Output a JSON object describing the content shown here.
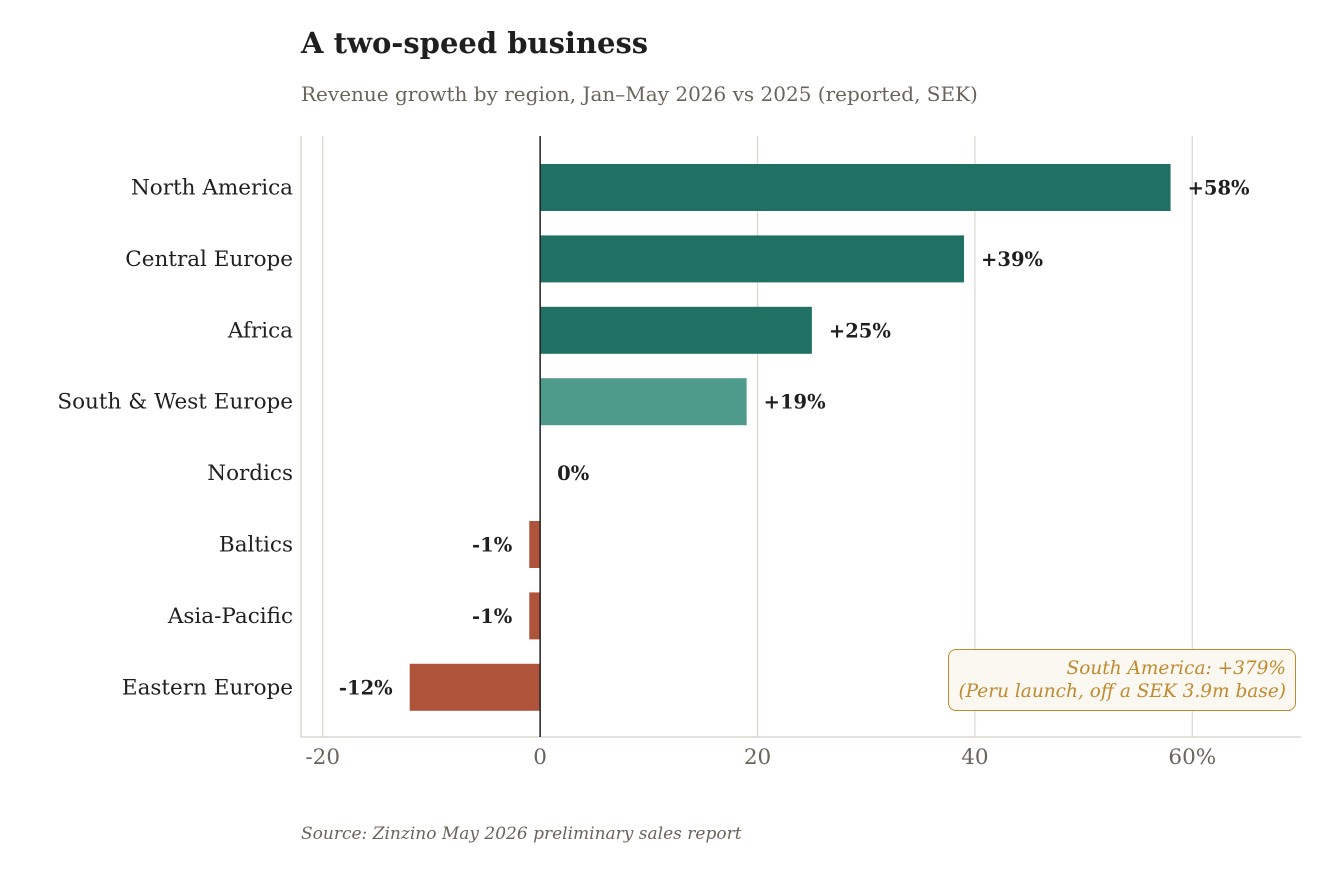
{
  "title": "A two-speed business",
  "subtitle": "Revenue growth by region, Jan–May 2026 vs 2025 (reported, SEK)",
  "source": "Source: Zinzino May 2026 preliminary sales report",
  "annotation": {
    "line1": "South America: +379%",
    "line2": "(Peru launch, off a SEK 3.9m base)"
  },
  "colors": {
    "positive_strong": "#207164",
    "positive_light": "#4e9b8c",
    "negative": "#b0533b",
    "grid": "#dedad0",
    "axis": "#d6d1c5",
    "text": "#1f1f1f",
    "muted": "#6b645c",
    "accent": "#c08a2e"
  },
  "chart_data": {
    "type": "bar",
    "orientation": "horizontal",
    "categories": [
      "North America",
      "Central Europe",
      "Africa",
      "South & West Europe",
      "Nordics",
      "Baltics",
      "Asia-Pacific",
      "Eastern Europe"
    ],
    "values": [
      58,
      39,
      25,
      19,
      0,
      -1,
      -1,
      -12
    ],
    "value_labels": [
      "+58%",
      "+39%",
      "+25%",
      "+19%",
      "0%",
      "-1%",
      "-1%",
      "-12%"
    ],
    "bar_styles": [
      "strong",
      "strong",
      "strong",
      "light",
      "strong",
      "negative",
      "negative",
      "negative"
    ],
    "xlim": [
      -22,
      70
    ],
    "xticks": [
      -20,
      0,
      20,
      40,
      60
    ],
    "xtick_labels": [
      "-20",
      "0",
      "20",
      "40",
      "60%"
    ],
    "grid": true
  }
}
